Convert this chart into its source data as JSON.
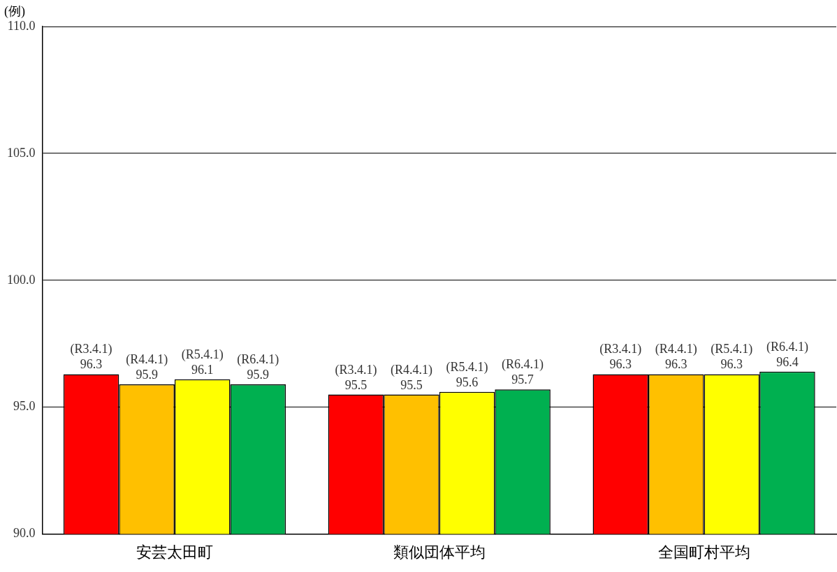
{
  "chart_data": {
    "type": "bar",
    "ylabel": "(例)",
    "categories": [
      "安芸太田町",
      "類似団体平均",
      "全国町村平均"
    ],
    "series": [
      {
        "name": "(R3.4.1)",
        "color": "#ff0000",
        "values": [
          96.3,
          95.5,
          96.3
        ]
      },
      {
        "name": "(R4.4.1)",
        "color": "#ffc000",
        "values": [
          95.9,
          95.5,
          96.3
        ]
      },
      {
        "name": "(R5.4.1)",
        "color": "#ffff00",
        "values": [
          96.1,
          95.6,
          96.3
        ]
      },
      {
        "name": "(R6.4.1)",
        "color": "#00b050",
        "values": [
          95.9,
          95.7,
          96.4
        ]
      }
    ],
    "ylim": [
      90,
      110
    ],
    "yticks": [
      {
        "value": 90,
        "label": "90.0"
      },
      {
        "value": 95,
        "label": "95.0"
      },
      {
        "value": 100,
        "label": "100.0"
      },
      {
        "value": 105,
        "label": "105.0"
      },
      {
        "value": 110,
        "label": "110.0"
      }
    ],
    "grid": "y",
    "legend": false,
    "data_labels": true
  }
}
